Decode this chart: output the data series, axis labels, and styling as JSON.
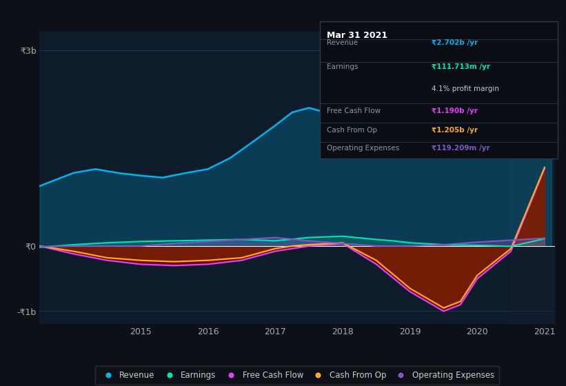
{
  "bg_color": "#0d1117",
  "chart_bg": "#0d1b2a",
  "grid_color": "#1e3a5f",
  "text_color": "#aaaaaa",
  "title_color": "#ffffff",
  "ylim": [
    -1200000000.0,
    3300000000.0
  ],
  "ytick_labels": [
    "-₹1b",
    "₹0",
    "₹3b"
  ],
  "xtick_labels": [
    "2015",
    "2016",
    "2017",
    "2018",
    "2019",
    "2020",
    "2021"
  ],
  "legend": [
    {
      "label": "Revenue",
      "color": "#00b4f0"
    },
    {
      "label": "Earnings",
      "color": "#00e5b4"
    },
    {
      "label": "Free Cash Flow",
      "color": "#e040fb"
    },
    {
      "label": "Cash From Op",
      "color": "#ffa726"
    },
    {
      "label": "Operating Expenses",
      "color": "#7e57c2"
    }
  ],
  "tooltip_title": "Mar 31 2021",
  "revenue_x": [
    2013.5,
    2014.0,
    2014.33,
    2014.67,
    2015.0,
    2015.33,
    2015.67,
    2016.0,
    2016.33,
    2016.67,
    2017.0,
    2017.25,
    2017.5,
    2017.75,
    2018.0,
    2018.25,
    2018.5,
    2018.75,
    2019.0,
    2019.25,
    2019.5,
    2019.75,
    2020.0,
    2020.25,
    2020.5,
    2020.75,
    2021.0,
    2021.1
  ],
  "revenue_y": [
    920000000.0,
    1120000000.0,
    1180000000.0,
    1120000000.0,
    1080000000.0,
    1050000000.0,
    1120000000.0,
    1180000000.0,
    1350000000.0,
    1600000000.0,
    1850000000.0,
    2050000000.0,
    2120000000.0,
    2050000000.0,
    1950000000.0,
    2200000000.0,
    2380000000.0,
    2480000000.0,
    2520000000.0,
    2480000000.0,
    2350000000.0,
    2180000000.0,
    2000000000.0,
    1800000000.0,
    1880000000.0,
    2120000000.0,
    2702000000.0,
    2702000000.0
  ],
  "earnings_x": [
    2013.5,
    2014.0,
    2014.5,
    2015.0,
    2015.5,
    2016.0,
    2016.5,
    2017.0,
    2017.5,
    2018.0,
    2018.5,
    2018.75,
    2019.0,
    2019.5,
    2020.0,
    2020.5,
    2021.0
  ],
  "earnings_y": [
    -20000000.0,
    20000000.0,
    50000000.0,
    70000000.0,
    80000000.0,
    90000000.0,
    100000000.0,
    80000000.0,
    130000000.0,
    150000000.0,
    100000000.0,
    80000000.0,
    50000000.0,
    20000000.0,
    10000000.0,
    -5000000.0,
    112000000.0
  ],
  "fcf_x": [
    2013.5,
    2014.0,
    2014.5,
    2015.0,
    2015.5,
    2016.0,
    2016.5,
    2017.0,
    2017.25,
    2017.5,
    2018.0,
    2018.5,
    2019.0,
    2019.25,
    2019.5,
    2019.75,
    2020.0,
    2020.5,
    2021.0
  ],
  "fcf_y": [
    0.0,
    -120000000.0,
    -220000000.0,
    -280000000.0,
    -300000000.0,
    -280000000.0,
    -220000000.0,
    -80000000.0,
    -40000000.0,
    0.0,
    40000000.0,
    -280000000.0,
    -700000000.0,
    -850000000.0,
    -1000000000.0,
    -900000000.0,
    -500000000.0,
    -80000000.0,
    1190000000.0
  ],
  "cop_x": [
    2013.5,
    2014.0,
    2014.5,
    2015.0,
    2015.5,
    2016.0,
    2016.5,
    2017.0,
    2017.25,
    2017.5,
    2018.0,
    2018.5,
    2019.0,
    2019.25,
    2019.5,
    2019.75,
    2020.0,
    2020.5,
    2021.0
  ],
  "cop_y": [
    0.0,
    -80000000.0,
    -180000000.0,
    -220000000.0,
    -240000000.0,
    -220000000.0,
    -180000000.0,
    -40000000.0,
    0.0,
    20000000.0,
    50000000.0,
    -220000000.0,
    -650000000.0,
    -800000000.0,
    -950000000.0,
    -850000000.0,
    -450000000.0,
    -40000000.0,
    1205000000.0
  ],
  "opex_x": [
    2013.5,
    2014.0,
    2014.5,
    2015.0,
    2015.5,
    2016.0,
    2016.5,
    2017.0,
    2017.5,
    2018.0,
    2018.25,
    2018.5,
    2019.0,
    2019.5,
    2020.0,
    2020.5,
    2021.0
  ],
  "opex_y": [
    -10000000.0,
    0.0,
    0.0,
    0.0,
    40000000.0,
    70000000.0,
    100000000.0,
    130000000.0,
    80000000.0,
    40000000.0,
    20000000.0,
    0.0,
    0.0,
    20000000.0,
    60000000.0,
    90000000.0,
    120000000.0
  ]
}
